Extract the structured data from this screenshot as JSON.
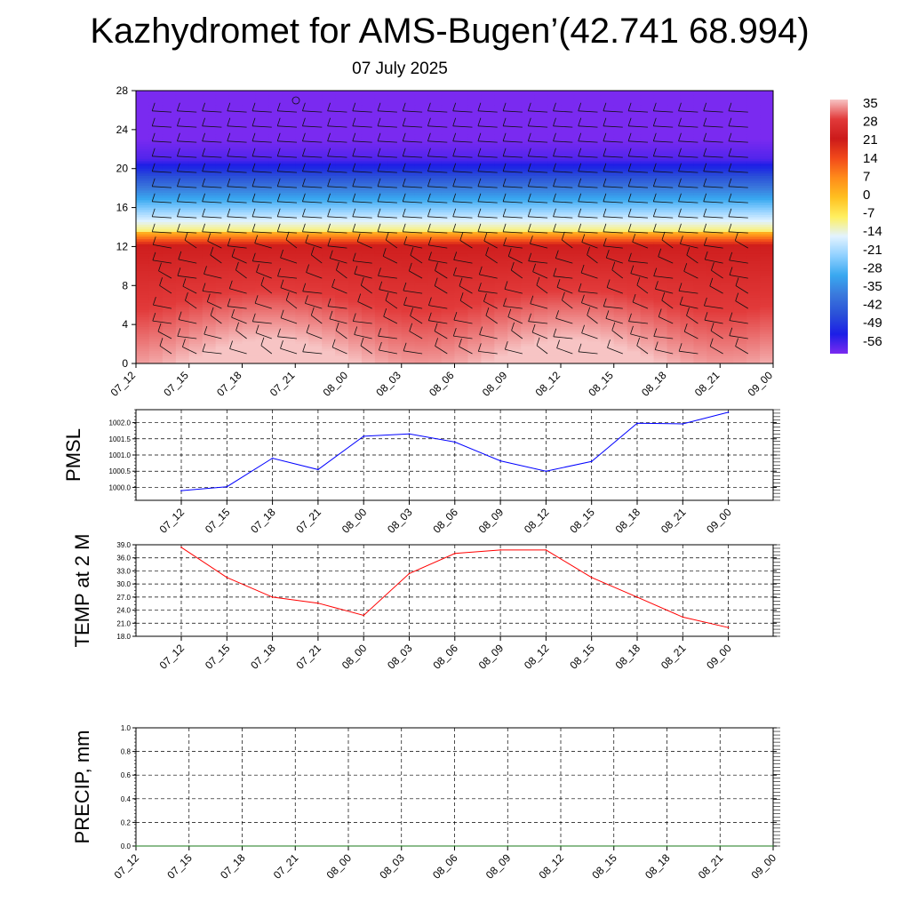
{
  "title": "Kazhydromet for AMS-Bugen’(42.741 68.994)",
  "subtitle": "07 July 2025",
  "time_labels": [
    "07_12",
    "07_15",
    "07_18",
    "07_21",
    "08_00",
    "08_03",
    "08_06",
    "08_09",
    "08_12",
    "08_15",
    "08_18",
    "08_21",
    "09_00"
  ],
  "chart_data": [
    {
      "id": "cross-section",
      "type": "heatmap",
      "y_ticks": [
        0,
        4,
        8,
        12,
        16,
        20,
        24,
        28
      ],
      "ylim": [
        0,
        28
      ],
      "colorbar": {
        "labels": [
          "35",
          "28",
          "21",
          "14",
          "7",
          "0",
          "-7",
          "-14",
          "-21",
          "-28",
          "-35",
          "-42",
          "-49",
          "-56"
        ],
        "stops": [
          {
            "v": 35,
            "c": "#f7c4c4"
          },
          {
            "v": 28,
            "c": "#e23a3a"
          },
          {
            "v": 21,
            "c": "#cc1a1a"
          },
          {
            "v": 14,
            "c": "#f24a1a"
          },
          {
            "v": 7,
            "c": "#ff8c1a"
          },
          {
            "v": 0,
            "c": "#ffc020"
          },
          {
            "v": -7,
            "c": "#fff060"
          },
          {
            "v": -14,
            "c": "#e2f3ff"
          },
          {
            "v": -21,
            "c": "#8fd0ff"
          },
          {
            "v": -28,
            "c": "#39a8f0"
          },
          {
            "v": -35,
            "c": "#3a78dc"
          },
          {
            "v": -42,
            "c": "#2a50d8"
          },
          {
            "v": -49,
            "c": "#1c1ee6"
          },
          {
            "v": -56,
            "c": "#7a2af0"
          }
        ]
      }
    },
    {
      "id": "pmsl",
      "type": "line",
      "ylabel": "PMSL",
      "y_ticks": [
        "1000.0",
        "1000.5",
        "1001.0",
        "1001.5",
        "1002.0"
      ],
      "ylim": [
        999.6,
        1002.4
      ],
      "line_color": "#0000ff",
      "values": [
        999.9,
        1000.02,
        1000.9,
        1000.55,
        1001.58,
        1001.65,
        1001.4,
        1000.82,
        1000.5,
        1000.8,
        1001.98,
        1001.96,
        1002.32
      ]
    },
    {
      "id": "temp",
      "type": "line",
      "ylabel": "TEMP at 2 M",
      "y_ticks": [
        "18.0",
        "21.0",
        "24.0",
        "27.0",
        "30.0",
        "33.0",
        "36.0",
        "39.0"
      ],
      "ylim": [
        18,
        39
      ],
      "line_color": "#ff0000",
      "values": [
        38.4,
        31.5,
        27.0,
        25.6,
        22.8,
        32.4,
        37.0,
        37.8,
        37.8,
        31.5,
        27.0,
        22.4,
        20.0
      ]
    },
    {
      "id": "precip",
      "type": "line",
      "ylabel": "PRECIP, mm",
      "y_ticks": [
        "0.0",
        "0.2",
        "0.4",
        "0.6",
        "0.8",
        "1.0"
      ],
      "ylim": [
        0,
        1
      ],
      "line_color": "#1a7a1a",
      "values": [
        0,
        0,
        0,
        0,
        0,
        0,
        0,
        0,
        0,
        0,
        0,
        0,
        0
      ]
    }
  ]
}
